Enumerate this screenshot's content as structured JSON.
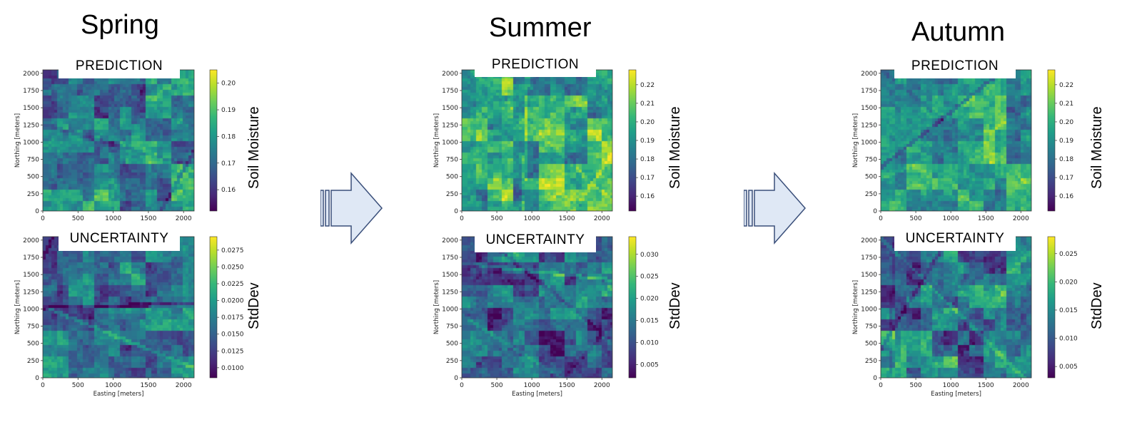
{
  "colors": {
    "viridis": [
      "#440154",
      "#482878",
      "#3e4989",
      "#31688e",
      "#26828e",
      "#1f9e89",
      "#35b779",
      "#6ece58",
      "#b5de2b",
      "#fde725"
    ]
  },
  "arrow_icon": "right-arrow-icon",
  "chart_data": [
    {
      "type": "heatmap",
      "season": "Spring",
      "label": "PREDICTION",
      "colorbar_label": "Soil Moisture",
      "colorbar_ticks": [
        "0.20",
        "0.19",
        "0.18",
        "0.17",
        "0.16"
      ],
      "colorbar_range": [
        0.152,
        0.205
      ],
      "xlabel": "",
      "ylabel": "Northing [meters]",
      "x_ticks": [
        "0",
        "500",
        "1000",
        "1500",
        "2000"
      ],
      "y_ticks": [
        "0",
        "250",
        "500",
        "750",
        "1000",
        "1250",
        "1500",
        "1750",
        "2000"
      ],
      "x_range": [
        0,
        2150
      ],
      "y_range": [
        0,
        2050
      ],
      "field_mean": 0.45,
      "field_contrast": 0.22,
      "seed": 11
    },
    {
      "type": "heatmap",
      "season": "Spring",
      "label": "UNCERTAINTY",
      "colorbar_label": "StdDev",
      "colorbar_ticks": [
        "0.0275",
        "0.0250",
        "0.0225",
        "0.0200",
        "0.0175",
        "0.0150",
        "0.0125",
        "0.0100"
      ],
      "colorbar_range": [
        0.0085,
        0.0295
      ],
      "xlabel": "Easting [meters]",
      "ylabel": "Northing [meters]",
      "x_ticks": [
        "0",
        "500",
        "1000",
        "1500",
        "2000"
      ],
      "y_ticks": [
        "0",
        "250",
        "500",
        "750",
        "1000",
        "1250",
        "1500",
        "1750",
        "2000"
      ],
      "x_range": [
        0,
        2150
      ],
      "y_range": [
        0,
        2050
      ],
      "field_mean": 0.38,
      "field_contrast": 0.2,
      "seed": 23
    },
    {
      "type": "heatmap",
      "season": "Summer",
      "label": "PREDICTION",
      "colorbar_label": "Soil Moisture",
      "colorbar_ticks": [
        "0.22",
        "0.21",
        "0.20",
        "0.19",
        "0.18",
        "0.17",
        "0.16"
      ],
      "colorbar_range": [
        0.152,
        0.228
      ],
      "xlabel": "",
      "ylabel": "Northing [meters]",
      "x_ticks": [
        "0",
        "500",
        "1000",
        "1500",
        "2000"
      ],
      "y_ticks": [
        "0",
        "250",
        "500",
        "750",
        "1000",
        "1250",
        "1500",
        "1750",
        "2000"
      ],
      "x_range": [
        0,
        2150
      ],
      "y_range": [
        0,
        2050
      ],
      "field_mean": 0.62,
      "field_contrast": 0.22,
      "seed": 37
    },
    {
      "type": "heatmap",
      "season": "Summer",
      "label": "UNCERTAINTY",
      "colorbar_label": "StdDev",
      "colorbar_ticks": [
        "0.030",
        "0.025",
        "0.020",
        "0.015",
        "0.010",
        "0.005"
      ],
      "colorbar_range": [
        0.002,
        0.034
      ],
      "xlabel": "Easting [meters]",
      "ylabel": "Northing [meters]",
      "x_ticks": [
        "0",
        "500",
        "1000",
        "1500",
        "2000"
      ],
      "y_ticks": [
        "0",
        "250",
        "500",
        "750",
        "1000",
        "1250",
        "1500",
        "1750",
        "2000"
      ],
      "x_range": [
        0,
        2150
      ],
      "y_range": [
        0,
        2050
      ],
      "field_mean": 0.32,
      "field_contrast": 0.22,
      "seed": 41
    },
    {
      "type": "heatmap",
      "season": "Autumn",
      "label": "PREDICTION",
      "colorbar_label": "Soil Moisture",
      "colorbar_ticks": [
        "0.22",
        "0.21",
        "0.20",
        "0.19",
        "0.18",
        "0.17",
        "0.16"
      ],
      "colorbar_range": [
        0.152,
        0.228
      ],
      "xlabel": "",
      "ylabel": "Northing [meters]",
      "x_ticks": [
        "0",
        "500",
        "1000",
        "1500",
        "2000"
      ],
      "y_ticks": [
        "0",
        "250",
        "500",
        "750",
        "1000",
        "1250",
        "1500",
        "1750",
        "2000"
      ],
      "x_range": [
        0,
        2150
      ],
      "y_range": [
        0,
        2050
      ],
      "field_mean": 0.58,
      "field_contrast": 0.2,
      "seed": 53
    },
    {
      "type": "heatmap",
      "season": "Autumn",
      "label": "UNCERTAINTY",
      "colorbar_label": "StdDev",
      "colorbar_ticks": [
        "0.025",
        "0.020",
        "0.015",
        "0.010",
        "0.005"
      ],
      "colorbar_range": [
        0.003,
        0.028
      ],
      "xlabel": "Easting [meters]",
      "ylabel": "Northing [meters]",
      "x_ticks": [
        "0",
        "500",
        "1000",
        "1500",
        "2000"
      ],
      "y_ticks": [
        "0",
        "250",
        "500",
        "750",
        "1000",
        "1250",
        "1500",
        "1750",
        "2000"
      ],
      "x_range": [
        0,
        2150
      ],
      "y_range": [
        0,
        2050
      ],
      "field_mean": 0.42,
      "field_contrast": 0.22,
      "seed": 67
    }
  ]
}
